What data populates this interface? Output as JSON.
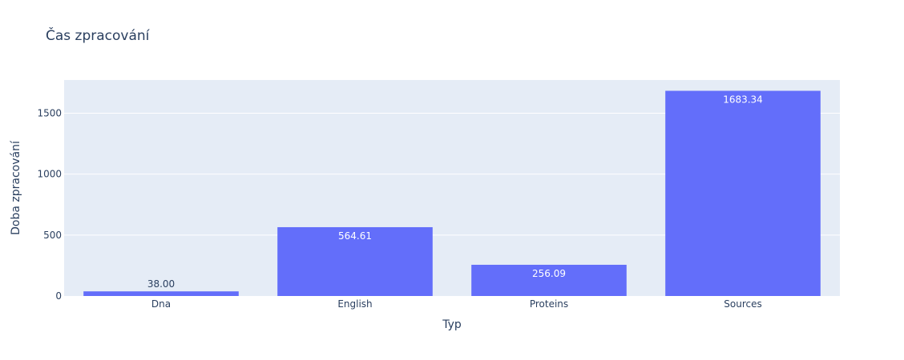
{
  "chart_data": {
    "type": "bar",
    "title": "Čas zpracování",
    "xlabel": "Typ",
    "ylabel": "Doba zpracování",
    "categories": [
      "Dna",
      "English",
      "Proteins",
      "Sources"
    ],
    "values": [
      38.0,
      564.61,
      256.09,
      1683.34
    ],
    "value_labels": [
      "38.00",
      "564.61",
      "256.09",
      "1683.34"
    ],
    "yticks": [
      0,
      500,
      1000,
      1500
    ],
    "ytick_labels": [
      "0",
      "500",
      "1000",
      "1500"
    ],
    "ylim": [
      0,
      1772
    ],
    "grid": true,
    "bar_color": "#636efa",
    "plot_background": "#e5ecf6",
    "text_color": "#2a3f5f"
  }
}
